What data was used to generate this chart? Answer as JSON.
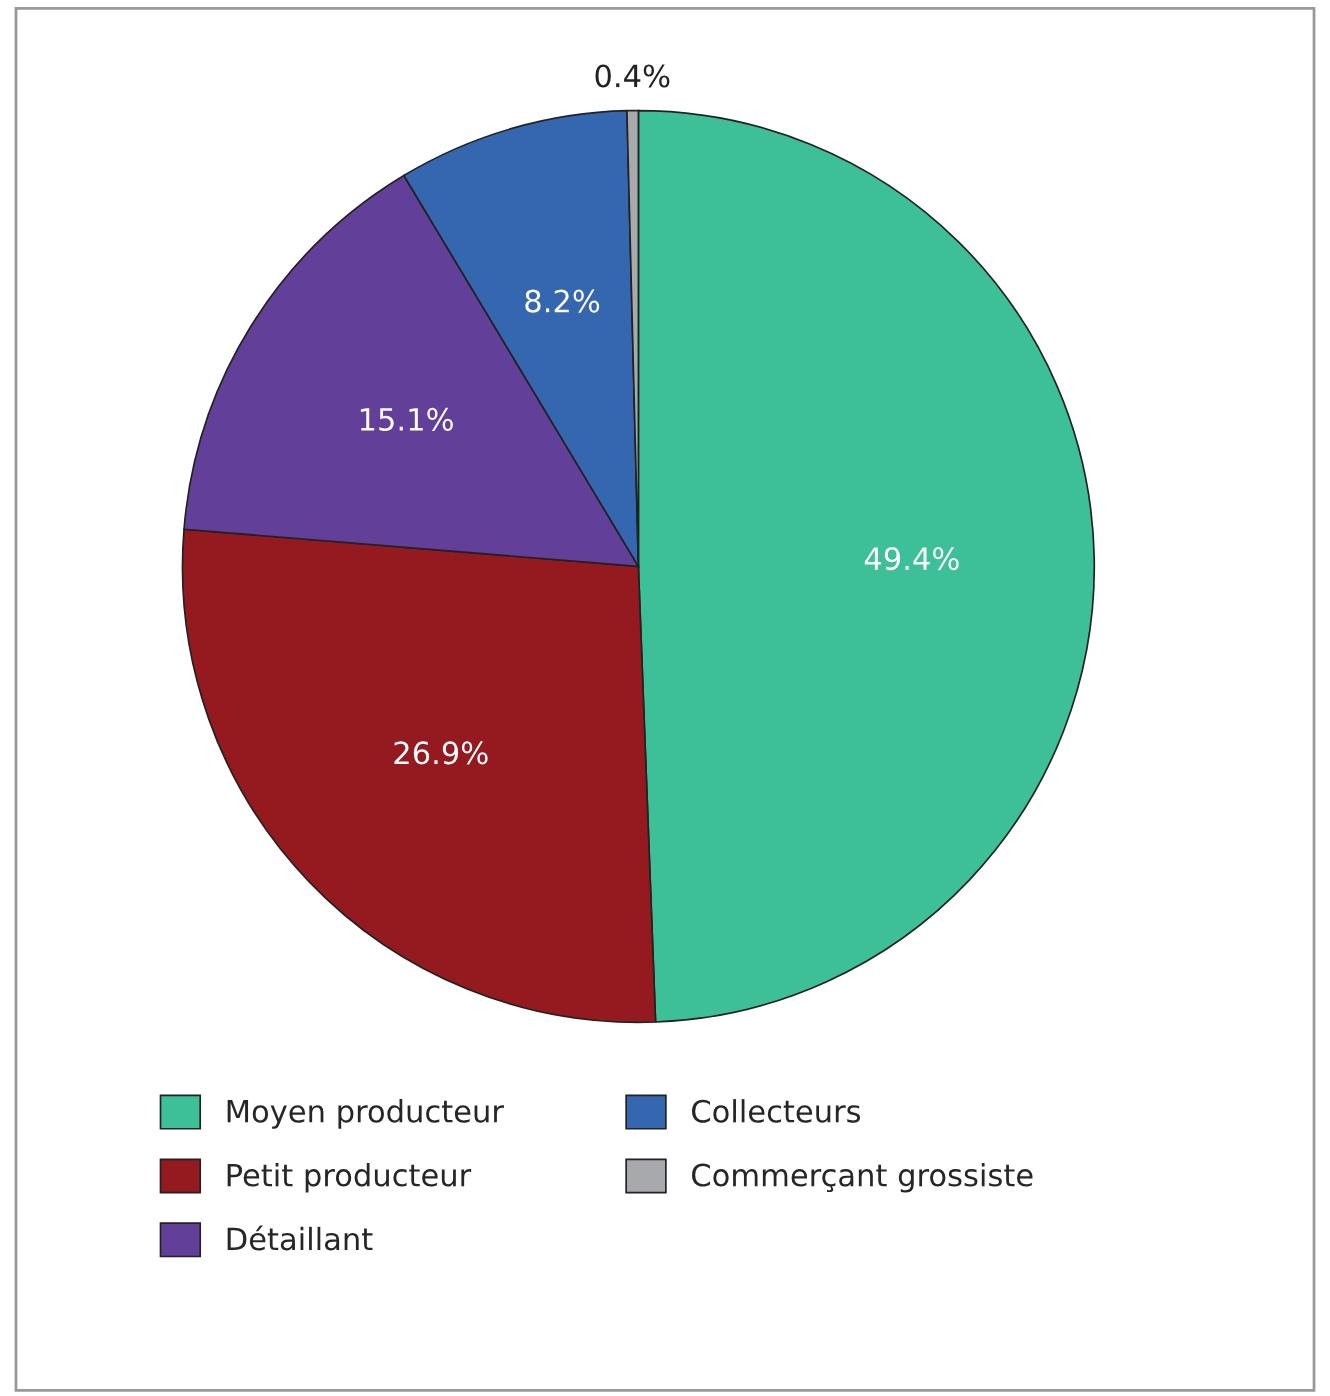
{
  "chart_data": {
    "type": "pie",
    "categories": [
      "Moyen producteur",
      "Petit producteur",
      "Détaillant",
      "Collecteurs",
      "Commerçant grossiste"
    ],
    "values": [
      49.4,
      26.9,
      15.1,
      8.2,
      0.4
    ],
    "colors": [
      "#3dbf98",
      "#951a1f",
      "#623f99",
      "#3566b0",
      "#a7a9ac"
    ],
    "value_labels": [
      "49.4%",
      "26.9%",
      "15.1%",
      "8.2%",
      "0.4%"
    ],
    "legend": "bottom"
  }
}
